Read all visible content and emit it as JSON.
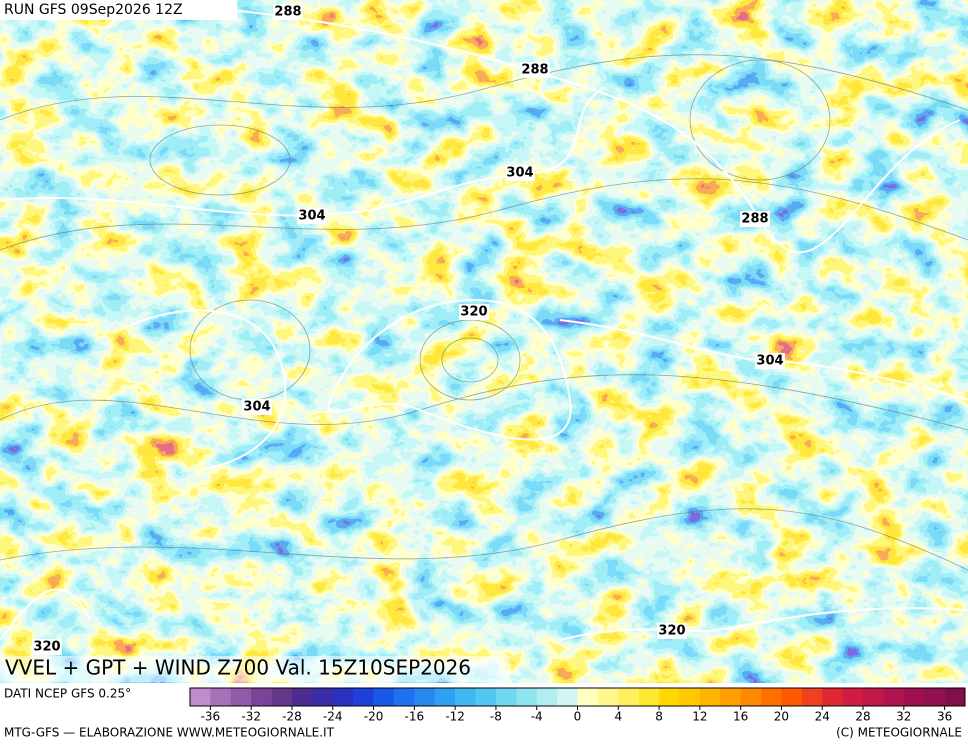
{
  "header": {
    "run": "RUN GFS 09Sep2026 12Z"
  },
  "map": {
    "contour_labels": [
      "288",
      "288",
      "304",
      "288",
      "304",
      "320",
      "304",
      "304",
      "320",
      "320"
    ]
  },
  "title": "VVEL + GPT + WIND Z700 Val. 15Z10SEP2026",
  "colorbar": {
    "source": "DATI NCEP GFS 0.25°",
    "range": [
      -38,
      38
    ],
    "ticks": [
      -36,
      -32,
      -28,
      -24,
      -20,
      -16,
      -12,
      -8,
      -4,
      0,
      4,
      8,
      12,
      16,
      20,
      24,
      28,
      32,
      36
    ],
    "colors": [
      "#c08ccc",
      "#a870b8",
      "#905aa8",
      "#7a4498",
      "#643888",
      "#4c2c90",
      "#3a2ca8",
      "#2a30c0",
      "#1e40d8",
      "#1a58e8",
      "#2070f0",
      "#2888f0",
      "#30a0f0",
      "#40b8f0",
      "#50c8f0",
      "#70d8f0",
      "#90e4f0",
      "#b0eef0",
      "#d0f6f4",
      "#ffffc0",
      "#fff890",
      "#fff060",
      "#ffe830",
      "#ffd800",
      "#ffc800",
      "#ffb400",
      "#ffa000",
      "#ff8800",
      "#ff7000",
      "#ff5800",
      "#f04020",
      "#e02830",
      "#d01c40",
      "#c01848",
      "#b01450",
      "#a01050",
      "#901050",
      "#801048"
    ]
  },
  "footer": {
    "credit": "MTG-GFS — ELABORAZIONE WWW.METEOGIORNALE.IT",
    "copyright": "(C) METEOGIORNALE"
  }
}
